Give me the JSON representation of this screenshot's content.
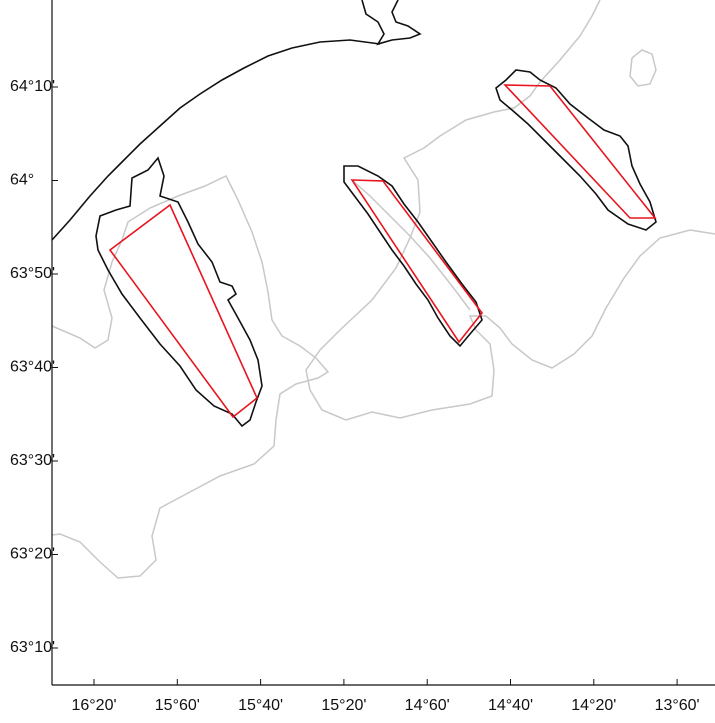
{
  "map": {
    "x_axis_labels": [
      "16°20'",
      "15°60'",
      "15°40'",
      "15°20'",
      "14°60'",
      "14°40'",
      "14°20'",
      "13°60'"
    ],
    "y_axis_labels": [
      "64°10'",
      "64°",
      "63°50'",
      "63°40'",
      "63°30'",
      "63°20'",
      "63°10'"
    ]
  }
}
